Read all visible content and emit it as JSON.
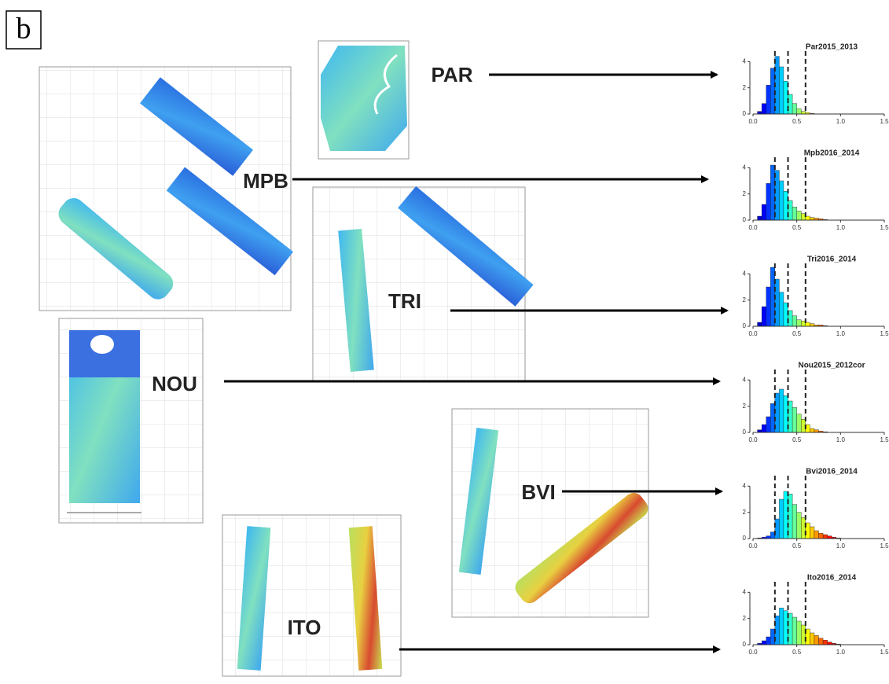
{
  "panel_label": "b",
  "sites": [
    "PAR",
    "MPB",
    "TRI",
    "NOU",
    "BVI",
    "ITO"
  ],
  "histogram_axes": {
    "xlim": [
      0,
      1.5
    ],
    "ylim": [
      0,
      4.5
    ],
    "xticks": [
      {
        "value": 0,
        "label": "0.0"
      },
      {
        "value": 0.5,
        "label": "0.5"
      },
      {
        "value": 1,
        "label": "1.0"
      },
      {
        "value": 1.5,
        "label": "1.5"
      }
    ],
    "yticks": [
      0,
      2,
      4
    ],
    "bins": [
      0,
      0.05,
      0.1,
      0.15,
      0.2,
      0.25,
      0.3,
      0.35,
      0.4,
      0.45,
      0.5,
      0.55,
      0.6,
      0.65,
      0.7,
      0.75,
      0.8,
      0.85,
      0.9,
      0.95,
      1.0
    ],
    "thresholds": [
      0.25,
      0.4,
      0.6
    ]
  },
  "histograms": [
    {
      "title": "Par2015_2013",
      "counts": [
        0,
        0.2,
        0.8,
        2.2,
        3.5,
        4.4,
        3.6,
        2.5,
        1.5,
        0.8,
        0.4,
        0.2,
        0.1,
        0.05,
        0,
        0,
        0,
        0,
        0,
        0
      ]
    },
    {
      "title": "Mpb2016_2014",
      "counts": [
        0,
        0.3,
        1.2,
        2.8,
        4.2,
        3.8,
        3.0,
        2.2,
        1.5,
        1.0,
        0.7,
        0.5,
        0.3,
        0.2,
        0.15,
        0.1,
        0.05,
        0,
        0,
        0
      ]
    },
    {
      "title": "Tri2016_2014",
      "counts": [
        0,
        0.3,
        1.5,
        3.0,
        4.5,
        3.6,
        2.6,
        1.8,
        1.2,
        0.8,
        0.5,
        0.4,
        0.3,
        0.2,
        0.1,
        0.1,
        0.05,
        0,
        0,
        0
      ]
    },
    {
      "title": "Nou2015_2012cor",
      "counts": [
        0,
        0.2,
        0.6,
        1.2,
        2.2,
        3.0,
        3.3,
        2.8,
        2.4,
        1.9,
        1.4,
        1.0,
        0.6,
        0.3,
        0.2,
        0.1,
        0.05,
        0,
        0,
        0
      ]
    },
    {
      "title": "Bvi2016_2014",
      "counts": [
        0,
        0.05,
        0.1,
        0.2,
        0.5,
        1.5,
        3.0,
        3.6,
        3.4,
        2.6,
        2.0,
        1.6,
        1.2,
        0.9,
        0.6,
        0.4,
        0.3,
        0.2,
        0.1,
        0.05
      ]
    },
    {
      "title": "Ito2016_2014",
      "counts": [
        0,
        0.1,
        0.3,
        0.6,
        1.2,
        2.2,
        2.8,
        2.6,
        2.4,
        2.1,
        1.8,
        1.5,
        1.2,
        0.9,
        0.7,
        0.5,
        0.35,
        0.2,
        0.1,
        0.05
      ]
    }
  ]
}
